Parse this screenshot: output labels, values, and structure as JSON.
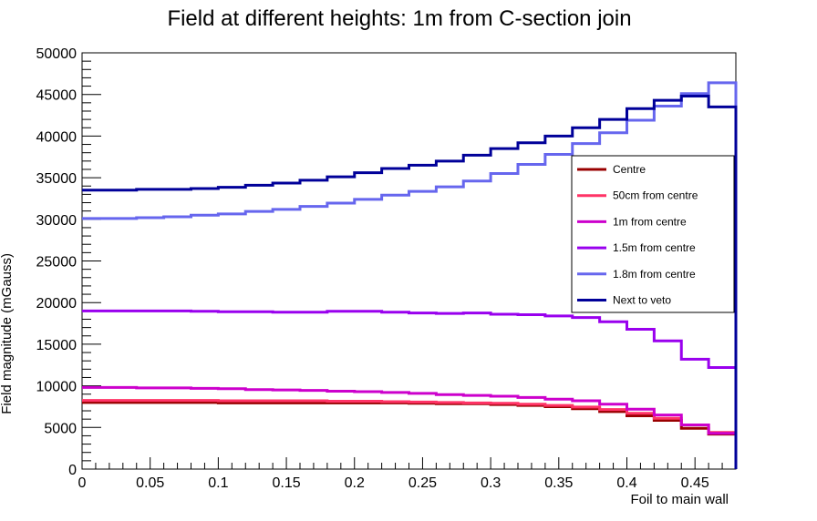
{
  "chart_data": {
    "type": "line",
    "style": "step-histogram",
    "title": "Field at different heights: 1m from C-section join",
    "xlabel": "Foil to main wall",
    "ylabel": "Field magnitude (mGauss)",
    "xlim": [
      0,
      0.48
    ],
    "ylim": [
      0,
      50000
    ],
    "xticks": [
      "0",
      "0.05",
      "0.1",
      "0.15",
      "0.2",
      "0.25",
      "0.3",
      "0.35",
      "0.4",
      "0.45"
    ],
    "yticks": [
      "0",
      "5000",
      "10000",
      "15000",
      "20000",
      "25000",
      "30000",
      "35000",
      "40000",
      "45000",
      "50000"
    ],
    "grid": false,
    "legend_position": "right",
    "bin_edges": [
      0,
      0.02,
      0.04,
      0.06,
      0.08,
      0.1,
      0.12,
      0.14,
      0.16,
      0.18,
      0.2,
      0.22,
      0.24,
      0.26,
      0.28,
      0.3,
      0.32,
      0.34,
      0.36,
      0.38,
      0.4,
      0.42,
      0.44,
      0.46,
      0.48
    ],
    "series": [
      {
        "name": "Centre",
        "color": "#990000",
        "values": [
          8000,
          8000,
          8000,
          8000,
          8000,
          7950,
          7950,
          7950,
          7950,
          7950,
          7950,
          7950,
          7900,
          7850,
          7850,
          7750,
          7650,
          7500,
          7250,
          6900,
          6400,
          5850,
          4900,
          4200
        ]
      },
      {
        "name": "50cm from centre",
        "color": "#ff3366",
        "values": [
          8250,
          8250,
          8250,
          8250,
          8250,
          8200,
          8200,
          8200,
          8200,
          8150,
          8150,
          8100,
          8050,
          8000,
          7950,
          7900,
          7800,
          7650,
          7450,
          7150,
          6700,
          6100,
          5300,
          4400
        ]
      },
      {
        "name": "1m from centre",
        "color": "#cc00cc",
        "values": [
          9800,
          9800,
          9750,
          9750,
          9700,
          9650,
          9550,
          9500,
          9450,
          9350,
          9300,
          9200,
          9100,
          8950,
          8850,
          8750,
          8600,
          8400,
          8200,
          7800,
          7200,
          6500,
          5300,
          4300
        ]
      },
      {
        "name": "1.5m from centre",
        "color": "#9900ee",
        "values": [
          19000,
          19000,
          19000,
          19000,
          18950,
          18900,
          18900,
          18850,
          18850,
          18950,
          18950,
          18850,
          18750,
          18700,
          18750,
          18600,
          18550,
          18400,
          18200,
          17700,
          16800,
          15400,
          13200,
          12200
        ]
      },
      {
        "name": "1.8m from centre",
        "color": "#6666ee",
        "values": [
          30100,
          30100,
          30200,
          30300,
          30500,
          30650,
          30950,
          31200,
          31550,
          31950,
          32400,
          32900,
          33350,
          33900,
          34600,
          35500,
          36600,
          37800,
          39100,
          40400,
          41900,
          43600,
          45100,
          46400
        ]
      },
      {
        "name": "Next to veto",
        "color": "#000099",
        "values": [
          33500,
          33500,
          33600,
          33600,
          33700,
          33850,
          34100,
          34350,
          34700,
          35100,
          35600,
          36100,
          36500,
          37000,
          37700,
          38500,
          39200,
          40000,
          41000,
          42000,
          43300,
          44300,
          44800,
          43500
        ]
      }
    ]
  }
}
